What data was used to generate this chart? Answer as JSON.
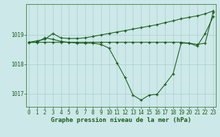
{
  "xlabel": "Graphe pression niveau de la mer (hPa)",
  "background_color": "#cce8e8",
  "grid_color": "#aacece",
  "line_color": "#1a5c1a",
  "series_main": [
    1018.75,
    1018.75,
    1018.9,
    1018.85,
    1018.78,
    1018.75,
    1018.72,
    1018.72,
    1018.72,
    1018.68,
    1018.55,
    1018.05,
    1017.55,
    1016.95,
    1016.78,
    1016.95,
    1016.98,
    1017.32,
    1017.68,
    1018.72,
    1018.72,
    1018.62,
    1019.05,
    1019.62
  ],
  "series_flat": [
    1018.75,
    1018.75,
    1018.75,
    1018.75,
    1018.75,
    1018.75,
    1018.75,
    1018.75,
    1018.75,
    1018.75,
    1018.75,
    1018.75,
    1018.75,
    1018.75,
    1018.75,
    1018.75,
    1018.75,
    1018.75,
    1018.75,
    1018.75,
    1018.72,
    1018.68,
    1018.72,
    1019.78
  ],
  "series_diagonal": [
    1018.75,
    1018.8,
    1018.85,
    1019.05,
    1018.9,
    1018.88,
    1018.88,
    1018.9,
    1018.95,
    1019.0,
    1019.05,
    1019.1,
    1019.15,
    1019.2,
    1019.25,
    1019.3,
    1019.35,
    1019.42,
    1019.48,
    1019.55,
    1019.6,
    1019.65,
    1019.72,
    1019.82
  ],
  "ylim": [
    1016.55,
    1020.05
  ],
  "yticks": [
    1017,
    1018,
    1019
  ],
  "xticks": [
    0,
    1,
    2,
    3,
    4,
    5,
    6,
    7,
    8,
    9,
    10,
    11,
    12,
    13,
    14,
    15,
    16,
    17,
    18,
    19,
    20,
    21,
    22,
    23
  ],
  "tick_fontsize": 5.5,
  "label_fontsize": 6.5
}
